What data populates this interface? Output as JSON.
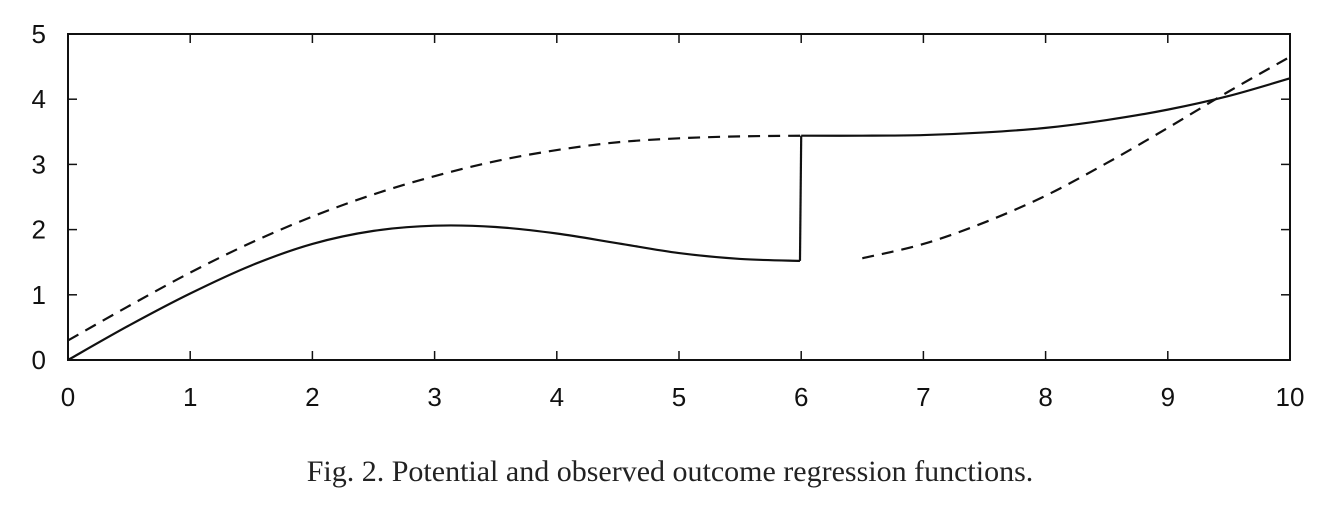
{
  "caption": "Fig. 2.  Potential and observed outcome regression functions.",
  "chart_data": {
    "type": "line",
    "xlim": [
      0,
      10
    ],
    "ylim": [
      0,
      5
    ],
    "xticks": [
      0,
      1,
      2,
      3,
      4,
      5,
      6,
      7,
      8,
      9,
      10
    ],
    "yticks": [
      0,
      1,
      2,
      3,
      4,
      5
    ],
    "x_tick_labels": [
      "0",
      "1",
      "2",
      "3",
      "4",
      "5",
      "6",
      "7",
      "8",
      "9",
      "10"
    ],
    "y_tick_labels": [
      "0",
      "1",
      "2",
      "3",
      "4",
      "5"
    ],
    "grid": false,
    "legend": "none",
    "series": [
      {
        "style": "solid",
        "color": "#111111",
        "x": [
          0,
          0.5,
          1,
          1.5,
          2,
          2.5,
          3,
          3.5,
          4,
          4.5,
          5,
          5.5,
          5.99,
          6,
          6.5,
          7,
          7.5,
          8,
          8.5,
          9,
          9.5,
          10
        ],
        "y": [
          0,
          0.53,
          1.02,
          1.45,
          1.78,
          1.98,
          2.06,
          2.04,
          1.94,
          1.79,
          1.64,
          1.55,
          1.52,
          3.44,
          3.44,
          3.45,
          3.49,
          3.56,
          3.68,
          3.84,
          4.05,
          4.32
        ]
      },
      {
        "style": "dashed",
        "color": "#111111",
        "x": [
          0,
          0.5,
          1,
          1.5,
          2,
          2.5,
          3,
          3.5,
          4,
          4.5,
          5,
          5.5,
          6,
          6.5,
          7,
          7.5,
          8,
          8.5,
          9,
          9.5,
          10
        ],
        "y": [
          0.3,
          0.83,
          1.34,
          1.8,
          2.2,
          2.54,
          2.82,
          3.05,
          3.22,
          3.34,
          3.4,
          3.43,
          3.44,
          1.56,
          1.78,
          2.11,
          2.52,
          3.02,
          3.56,
          4.12,
          4.65
        ]
      }
    ]
  }
}
